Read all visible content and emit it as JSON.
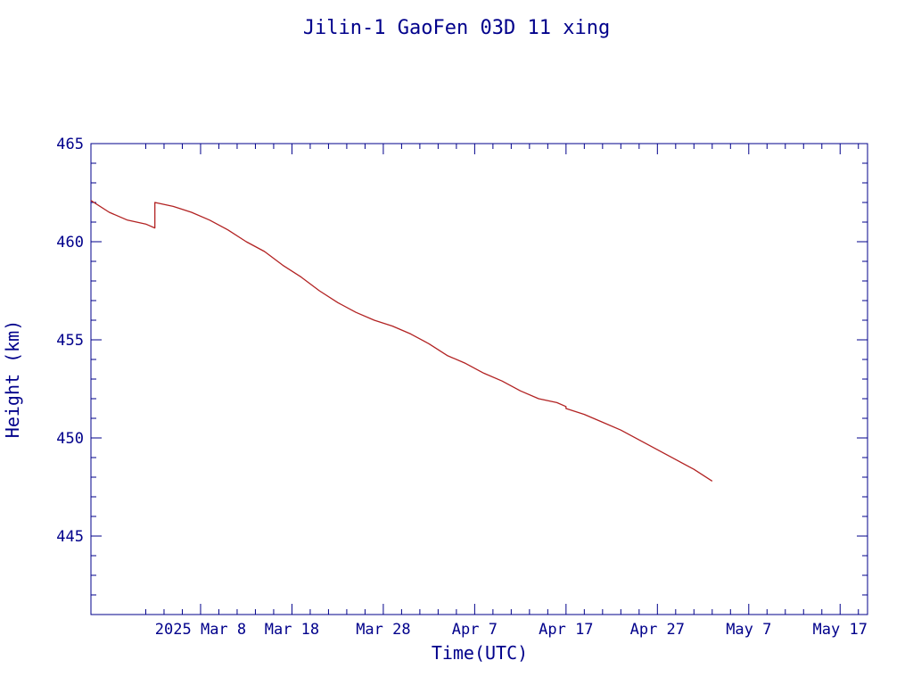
{
  "chart_data": {
    "type": "line",
    "title": "Jilin-1 GaoFen 03D 11 xing",
    "xlabel": "Time(UTC)",
    "ylabel": "Height (km)",
    "xlim": [
      "2025-02-24",
      "2025-05-20"
    ],
    "ylim": [
      441,
      465
    ],
    "grid": false,
    "legend": "none",
    "colors": {
      "axes": "#00008b",
      "series": "#b22222"
    },
    "xticks": [
      {
        "label": "2025 Mar  8",
        "date": "2025-03-08"
      },
      {
        "label": "Mar 18",
        "date": "2025-03-18"
      },
      {
        "label": "Mar 28",
        "date": "2025-03-28"
      },
      {
        "label": "Apr  7",
        "date": "2025-04-07"
      },
      {
        "label": "Apr 17",
        "date": "2025-04-17"
      },
      {
        "label": "Apr 27",
        "date": "2025-04-27"
      },
      {
        "label": "May  7",
        "date": "2025-05-07"
      },
      {
        "label": "May 17",
        "date": "2025-05-17"
      }
    ],
    "yticks": [
      {
        "label": "445",
        "value": 445
      },
      {
        "label": "450",
        "value": 450
      },
      {
        "label": "455",
        "value": 455
      },
      {
        "label": "460",
        "value": 460
      },
      {
        "label": "465",
        "value": 465
      }
    ],
    "series": [
      {
        "name": "",
        "x": [
          "2025-02-24",
          "2025-02-26",
          "2025-02-28",
          "2025-03-02",
          "2025-03-03",
          "2025-03-03",
          "2025-03-05",
          "2025-03-07",
          "2025-03-09",
          "2025-03-11",
          "2025-03-13",
          "2025-03-15",
          "2025-03-17",
          "2025-03-19",
          "2025-03-21",
          "2025-03-23",
          "2025-03-25",
          "2025-03-27",
          "2025-03-29",
          "2025-03-31",
          "2025-04-02",
          "2025-04-04",
          "2025-04-06",
          "2025-04-08",
          "2025-04-10",
          "2025-04-12",
          "2025-04-14",
          "2025-04-16",
          "2025-04-17",
          "2025-04-17",
          "2025-04-19",
          "2025-04-21",
          "2025-04-23",
          "2025-04-25",
          "2025-04-27",
          "2025-04-29",
          "2025-05-01",
          "2025-05-03"
        ],
        "y": [
          462.1,
          461.5,
          461.1,
          460.9,
          460.7,
          462.0,
          461.8,
          461.5,
          461.1,
          460.6,
          460.0,
          459.5,
          458.8,
          458.2,
          457.5,
          456.9,
          456.4,
          456.0,
          455.7,
          455.3,
          454.8,
          454.2,
          453.8,
          453.3,
          452.9,
          452.4,
          452.0,
          451.8,
          451.6,
          451.5,
          451.2,
          450.8,
          450.4,
          449.9,
          449.4,
          448.9,
          448.4,
          447.8
        ]
      }
    ]
  }
}
